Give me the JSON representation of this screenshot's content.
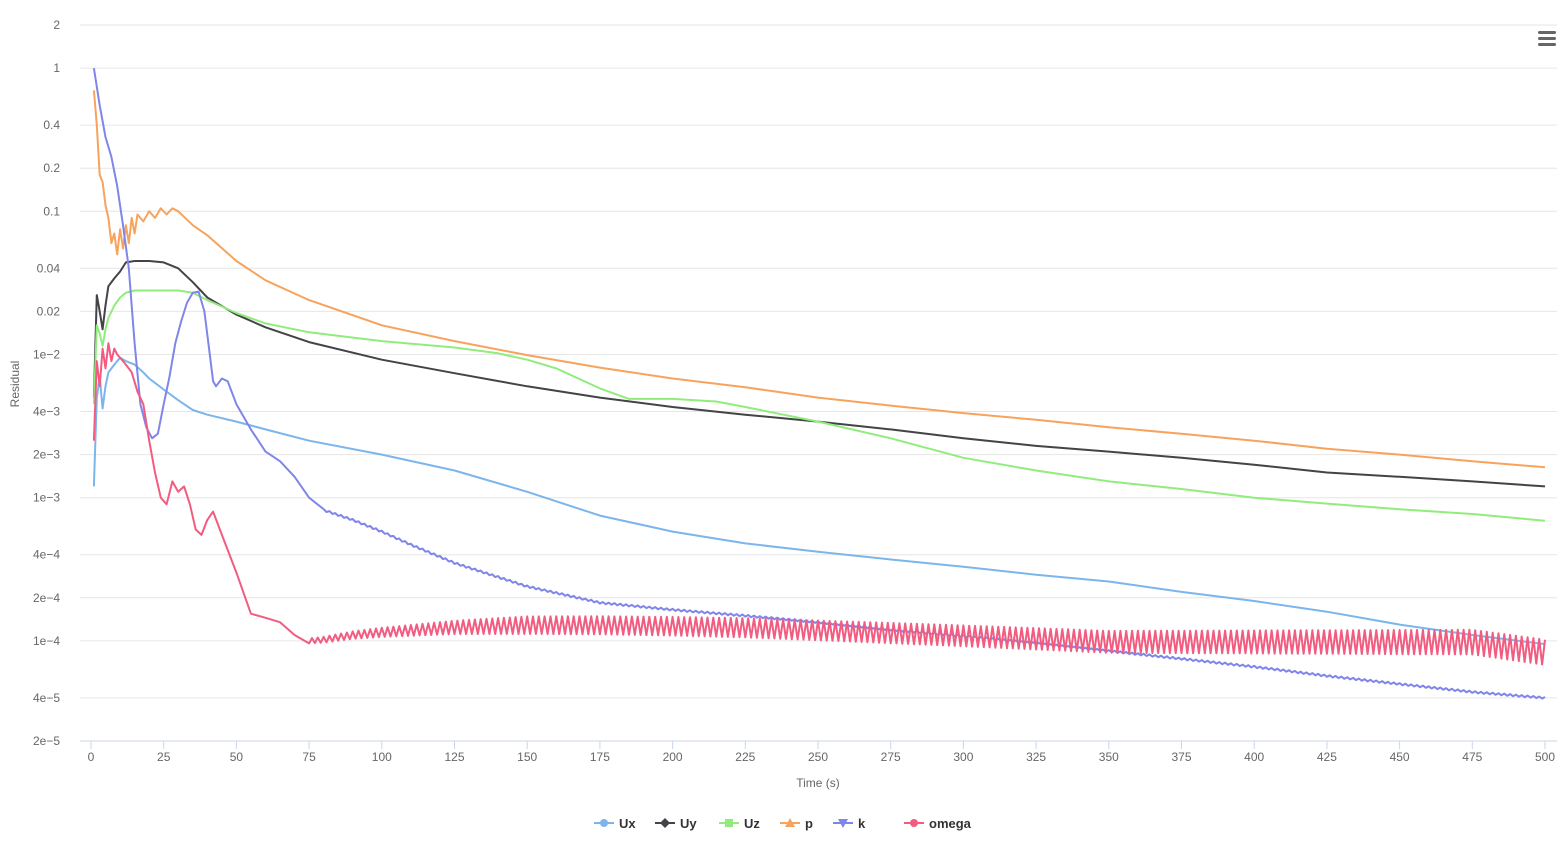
{
  "chart_data": {
    "type": "line",
    "title": "",
    "xlabel": "Time (s)",
    "ylabel": "Residual",
    "y_scale": "log",
    "xlim": [
      0,
      500
    ],
    "ylim": [
      2e-05,
      2
    ],
    "x_ticks": [
      0,
      25,
      50,
      75,
      100,
      125,
      150,
      175,
      200,
      225,
      250,
      275,
      300,
      325,
      350,
      375,
      400,
      425,
      450,
      475,
      500
    ],
    "x_tick_labels": [
      "0",
      "25",
      "50",
      "75",
      "100",
      "125",
      "150",
      "175",
      "200",
      "225",
      "250",
      "275",
      "300",
      "325",
      "350",
      "375",
      "400",
      "425",
      "450",
      "475",
      "500"
    ],
    "y_ticks": [
      2,
      1,
      0.4,
      0.2,
      0.1,
      0.04,
      0.02,
      0.01,
      0.004,
      0.002,
      0.001,
      0.0004,
      0.0002,
      0.0001,
      4e-05,
      2e-05
    ],
    "y_tick_labels": [
      "2",
      "1",
      "0.4",
      "0.2",
      "0.1",
      "0.04",
      "0.02",
      "1e−2",
      "4e−3",
      "2e−3",
      "1e−3",
      "4e−4",
      "2e−4",
      "1e−4",
      "4e−5",
      "2e−5"
    ],
    "grid": true,
    "legend_position": "bottom-center",
    "series": [
      {
        "name": "Ux",
        "color": "#7cb5ec",
        "marker": "circle",
        "points": [
          [
            1,
            0.0012
          ],
          [
            2,
            0.005
          ],
          [
            3,
            0.007
          ],
          [
            4,
            0.0042
          ],
          [
            5,
            0.006
          ],
          [
            6,
            0.0075
          ],
          [
            8,
            0.0085
          ],
          [
            10,
            0.0095
          ],
          [
            12,
            0.009
          ],
          [
            15,
            0.0085
          ],
          [
            18,
            0.0075
          ],
          [
            20,
            0.0068
          ],
          [
            25,
            0.0057
          ],
          [
            30,
            0.0048
          ],
          [
            35,
            0.0041
          ],
          [
            40,
            0.0038
          ],
          [
            50,
            0.0034
          ],
          [
            60,
            0.003
          ],
          [
            75,
            0.0025
          ],
          [
            100,
            0.002
          ],
          [
            125,
            0.00155
          ],
          [
            150,
            0.0011
          ],
          [
            175,
            0.00075
          ],
          [
            200,
            0.00058
          ],
          [
            225,
            0.00048
          ],
          [
            250,
            0.00042
          ],
          [
            275,
            0.00037
          ],
          [
            300,
            0.00033
          ],
          [
            325,
            0.00029
          ],
          [
            350,
            0.00026
          ],
          [
            375,
            0.00022
          ],
          [
            400,
            0.00019
          ],
          [
            425,
            0.00016
          ],
          [
            450,
            0.00013
          ],
          [
            475,
            0.00011
          ],
          [
            500,
            9.5e-05
          ]
        ]
      },
      {
        "name": "Uy",
        "color": "#434348",
        "marker": "diamond",
        "points": [
          [
            1,
            0.005
          ],
          [
            2,
            0.026
          ],
          [
            3,
            0.02
          ],
          [
            4,
            0.015
          ],
          [
            5,
            0.022
          ],
          [
            6,
            0.03
          ],
          [
            8,
            0.034
          ],
          [
            10,
            0.038
          ],
          [
            12,
            0.044
          ],
          [
            15,
            0.045
          ],
          [
            20,
            0.045
          ],
          [
            25,
            0.044
          ],
          [
            30,
            0.04
          ],
          [
            35,
            0.032
          ],
          [
            40,
            0.025
          ],
          [
            50,
            0.019
          ],
          [
            60,
            0.0155
          ],
          [
            75,
            0.0122
          ],
          [
            100,
            0.0092
          ],
          [
            125,
            0.0074
          ],
          [
            150,
            0.006
          ],
          [
            175,
            0.005
          ],
          [
            200,
            0.0043
          ],
          [
            225,
            0.0038
          ],
          [
            250,
            0.0034
          ],
          [
            275,
            0.003
          ],
          [
            300,
            0.0026
          ],
          [
            325,
            0.0023
          ],
          [
            350,
            0.0021
          ],
          [
            375,
            0.0019
          ],
          [
            400,
            0.0017
          ],
          [
            425,
            0.0015
          ],
          [
            450,
            0.0014
          ],
          [
            475,
            0.0013
          ],
          [
            500,
            0.0012
          ]
        ]
      },
      {
        "name": "Uz",
        "color": "#90ed7d",
        "marker": "square",
        "points": [
          [
            1,
            0.0045
          ],
          [
            2,
            0.016
          ],
          [
            3,
            0.014
          ],
          [
            4,
            0.0115
          ],
          [
            5,
            0.015
          ],
          [
            6,
            0.018
          ],
          [
            8,
            0.022
          ],
          [
            10,
            0.025
          ],
          [
            12,
            0.027
          ],
          [
            15,
            0.028
          ],
          [
            20,
            0.028
          ],
          [
            25,
            0.028
          ],
          [
            30,
            0.028
          ],
          [
            35,
            0.027
          ],
          [
            40,
            0.024
          ],
          [
            50,
            0.0195
          ],
          [
            60,
            0.0165
          ],
          [
            75,
            0.0143
          ],
          [
            100,
            0.0124
          ],
          [
            125,
            0.0112
          ],
          [
            140,
            0.0102
          ],
          [
            150,
            0.0092
          ],
          [
            160,
            0.008
          ],
          [
            175,
            0.0058
          ],
          [
            185,
            0.0049
          ],
          [
            200,
            0.0049
          ],
          [
            215,
            0.0047
          ],
          [
            225,
            0.0043
          ],
          [
            250,
            0.0034
          ],
          [
            275,
            0.0026
          ],
          [
            300,
            0.0019
          ],
          [
            325,
            0.00155
          ],
          [
            350,
            0.0013
          ],
          [
            375,
            0.00115
          ],
          [
            400,
            0.001
          ],
          [
            425,
            0.00091
          ],
          [
            450,
            0.00083
          ],
          [
            475,
            0.00077
          ],
          [
            500,
            0.00069
          ]
        ]
      },
      {
        "name": "p",
        "color": "#f7a35c",
        "marker": "triangle",
        "points": [
          [
            1,
            0.7
          ],
          [
            2,
            0.4
          ],
          [
            3,
            0.18
          ],
          [
            4,
            0.16
          ],
          [
            5,
            0.11
          ],
          [
            6,
            0.09
          ],
          [
            7,
            0.06
          ],
          [
            8,
            0.07
          ],
          [
            9,
            0.05
          ],
          [
            10,
            0.075
          ],
          [
            11,
            0.055
          ],
          [
            12,
            0.08
          ],
          [
            13,
            0.06
          ],
          [
            14,
            0.09
          ],
          [
            15,
            0.07
          ],
          [
            16,
            0.095
          ],
          [
            18,
            0.085
          ],
          [
            20,
            0.1
          ],
          [
            22,
            0.09
          ],
          [
            24,
            0.105
          ],
          [
            26,
            0.095
          ],
          [
            28,
            0.105
          ],
          [
            30,
            0.1
          ],
          [
            35,
            0.08
          ],
          [
            40,
            0.068
          ],
          [
            50,
            0.045
          ],
          [
            60,
            0.033
          ],
          [
            75,
            0.024
          ],
          [
            100,
            0.016
          ],
          [
            125,
            0.0124
          ],
          [
            150,
            0.0099
          ],
          [
            175,
            0.0081
          ],
          [
            200,
            0.0068
          ],
          [
            225,
            0.0059
          ],
          [
            250,
            0.005
          ],
          [
            275,
            0.0044
          ],
          [
            300,
            0.0039
          ],
          [
            325,
            0.0035
          ],
          [
            350,
            0.0031
          ],
          [
            375,
            0.0028
          ],
          [
            400,
            0.0025
          ],
          [
            425,
            0.0022
          ],
          [
            450,
            0.002
          ],
          [
            475,
            0.0018
          ],
          [
            500,
            0.00163
          ]
        ]
      },
      {
        "name": "k",
        "color": "#8085e9",
        "marker": "triangle-down",
        "points": [
          [
            1,
            1
          ],
          [
            3,
            0.55
          ],
          [
            5,
            0.33
          ],
          [
            7,
            0.24
          ],
          [
            9,
            0.15
          ],
          [
            11,
            0.08
          ],
          [
            13,
            0.04
          ],
          [
            15,
            0.012
          ],
          [
            17,
            0.0045
          ],
          [
            19,
            0.0031
          ],
          [
            21,
            0.0026
          ],
          [
            23,
            0.0028
          ],
          [
            25,
            0.0045
          ],
          [
            27,
            0.007
          ],
          [
            29,
            0.012
          ],
          [
            31,
            0.017
          ],
          [
            33,
            0.023
          ],
          [
            35,
            0.027
          ],
          [
            37,
            0.0275
          ],
          [
            39,
            0.02
          ],
          [
            41,
            0.0095
          ],
          [
            42,
            0.0065
          ],
          [
            43,
            0.006
          ],
          [
            45,
            0.0068
          ],
          [
            47,
            0.0065
          ],
          [
            50,
            0.0045
          ],
          [
            55,
            0.003
          ],
          [
            60,
            0.0021
          ],
          [
            65,
            0.0018
          ],
          [
            70,
            0.0014
          ],
          [
            75,
            0.001
          ],
          [
            80,
            0.00082
          ],
          [
            90,
            0.0007
          ],
          [
            100,
            0.00058
          ],
          [
            110,
            0.00047
          ],
          [
            125,
            0.00035
          ],
          [
            150,
            0.00024
          ],
          [
            175,
            0.000185
          ],
          [
            200,
            0.000165
          ],
          [
            225,
            0.00015
          ],
          [
            250,
            0.000135
          ],
          [
            275,
            0.00012
          ],
          [
            300,
            0.000108
          ],
          [
            325,
            9.6e-05
          ],
          [
            350,
            8.5e-05
          ],
          [
            375,
            7.5e-05
          ],
          [
            400,
            6.6e-05
          ],
          [
            425,
            5.7e-05
          ],
          [
            450,
            5e-05
          ],
          [
            475,
            4.4e-05
          ],
          [
            500,
            4e-05
          ]
        ]
      },
      {
        "name": "omega",
        "color": "#f15c80",
        "marker": "circle",
        "points": [
          [
            1,
            0.0025
          ],
          [
            2,
            0.009
          ],
          [
            3,
            0.006
          ],
          [
            4,
            0.011
          ],
          [
            5,
            0.008
          ],
          [
            6,
            0.012
          ],
          [
            7,
            0.009
          ],
          [
            8,
            0.011
          ],
          [
            9,
            0.01
          ],
          [
            10,
            0.0095
          ],
          [
            12,
            0.0085
          ],
          [
            14,
            0.0075
          ],
          [
            16,
            0.0055
          ],
          [
            18,
            0.0045
          ],
          [
            20,
            0.0025
          ],
          [
            22,
            0.0015
          ],
          [
            24,
            0.001
          ],
          [
            26,
            0.0009
          ],
          [
            28,
            0.0013
          ],
          [
            30,
            0.0011
          ],
          [
            32,
            0.0012
          ],
          [
            34,
            0.0009
          ],
          [
            36,
            0.0006
          ],
          [
            38,
            0.00055
          ],
          [
            40,
            0.0007
          ],
          [
            42,
            0.0008
          ],
          [
            45,
            0.00055
          ],
          [
            50,
            0.0003
          ],
          [
            55,
            0.000155
          ],
          [
            60,
            0.000145
          ],
          [
            65,
            0.000135
          ],
          [
            70,
            0.00011
          ],
          [
            75,
            0.0001
          ],
          [
            80,
            0.000102
          ],
          [
            90,
            0.00011
          ],
          [
            100,
            0.000115
          ],
          [
            125,
            0.000125
          ],
          [
            150,
            0.00013
          ],
          [
            175,
            0.00013
          ],
          [
            200,
            0.000128
          ],
          [
            225,
            0.000125
          ],
          [
            250,
            0.00012
          ],
          [
            275,
            0.000115
          ],
          [
            300,
            0.00011
          ],
          [
            325,
            0.000105
          ],
          [
            350,
            0.0001
          ],
          [
            375,
            0.0001
          ],
          [
            400,
            0.0001
          ],
          [
            425,
            0.0001
          ],
          [
            450,
            0.0001
          ],
          [
            475,
            0.0001
          ],
          [
            500,
            8.5e-05
          ]
        ]
      }
    ]
  },
  "menu": {
    "icon": "hamburger-menu-icon"
  }
}
